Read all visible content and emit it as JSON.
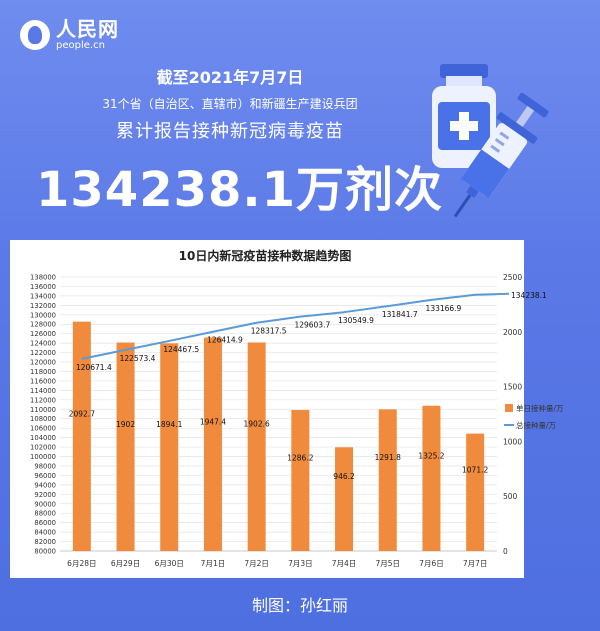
{
  "logo": {
    "cn": "人民网",
    "en": "people.cn"
  },
  "header": {
    "date": "截至2021年7月7日",
    "sub1": "31个省（自治区、直辖市）和新疆生产建设兵团",
    "sub2": "累计报告接种新冠病毒疫苗",
    "big": "134238.1万剂次"
  },
  "credit": "制图：孙红丽",
  "colors": {
    "bar": "#f08a3c",
    "line": "#5b9bd5",
    "background": "#5a78e6"
  },
  "icons": [
    "vaccine-bottle-icon",
    "syringe-icon"
  ],
  "chart_data": {
    "type": "bar",
    "title": "10日内新冠疫苗接种数据趋势图",
    "categories": [
      "6月28日",
      "6月29日",
      "6月30日",
      "7月1日",
      "7月2日",
      "7月3日",
      "7月4日",
      "7月5日",
      "7月6日",
      "7月7日"
    ],
    "series": [
      {
        "name": "单日接种量/万",
        "type": "bar",
        "axis": "right",
        "values": [
          2092.7,
          1902,
          1894.1,
          1947.4,
          1902.6,
          1286.2,
          946.2,
          1291.8,
          1325.2,
          1071.2
        ]
      },
      {
        "name": "总接种量/万",
        "type": "line",
        "axis": "left",
        "values": [
          120671.4,
          122573.4,
          124467.5,
          126414.9,
          128317.5,
          129603.7,
          130549.9,
          131841.7,
          133166.9,
          134238.1
        ]
      }
    ],
    "left_axis": {
      "min": 80000,
      "max": 138000,
      "step": 2000
    },
    "right_axis": {
      "min": 0,
      "max": 2500,
      "step": 500
    },
    "legend": "right",
    "grid": true
  }
}
